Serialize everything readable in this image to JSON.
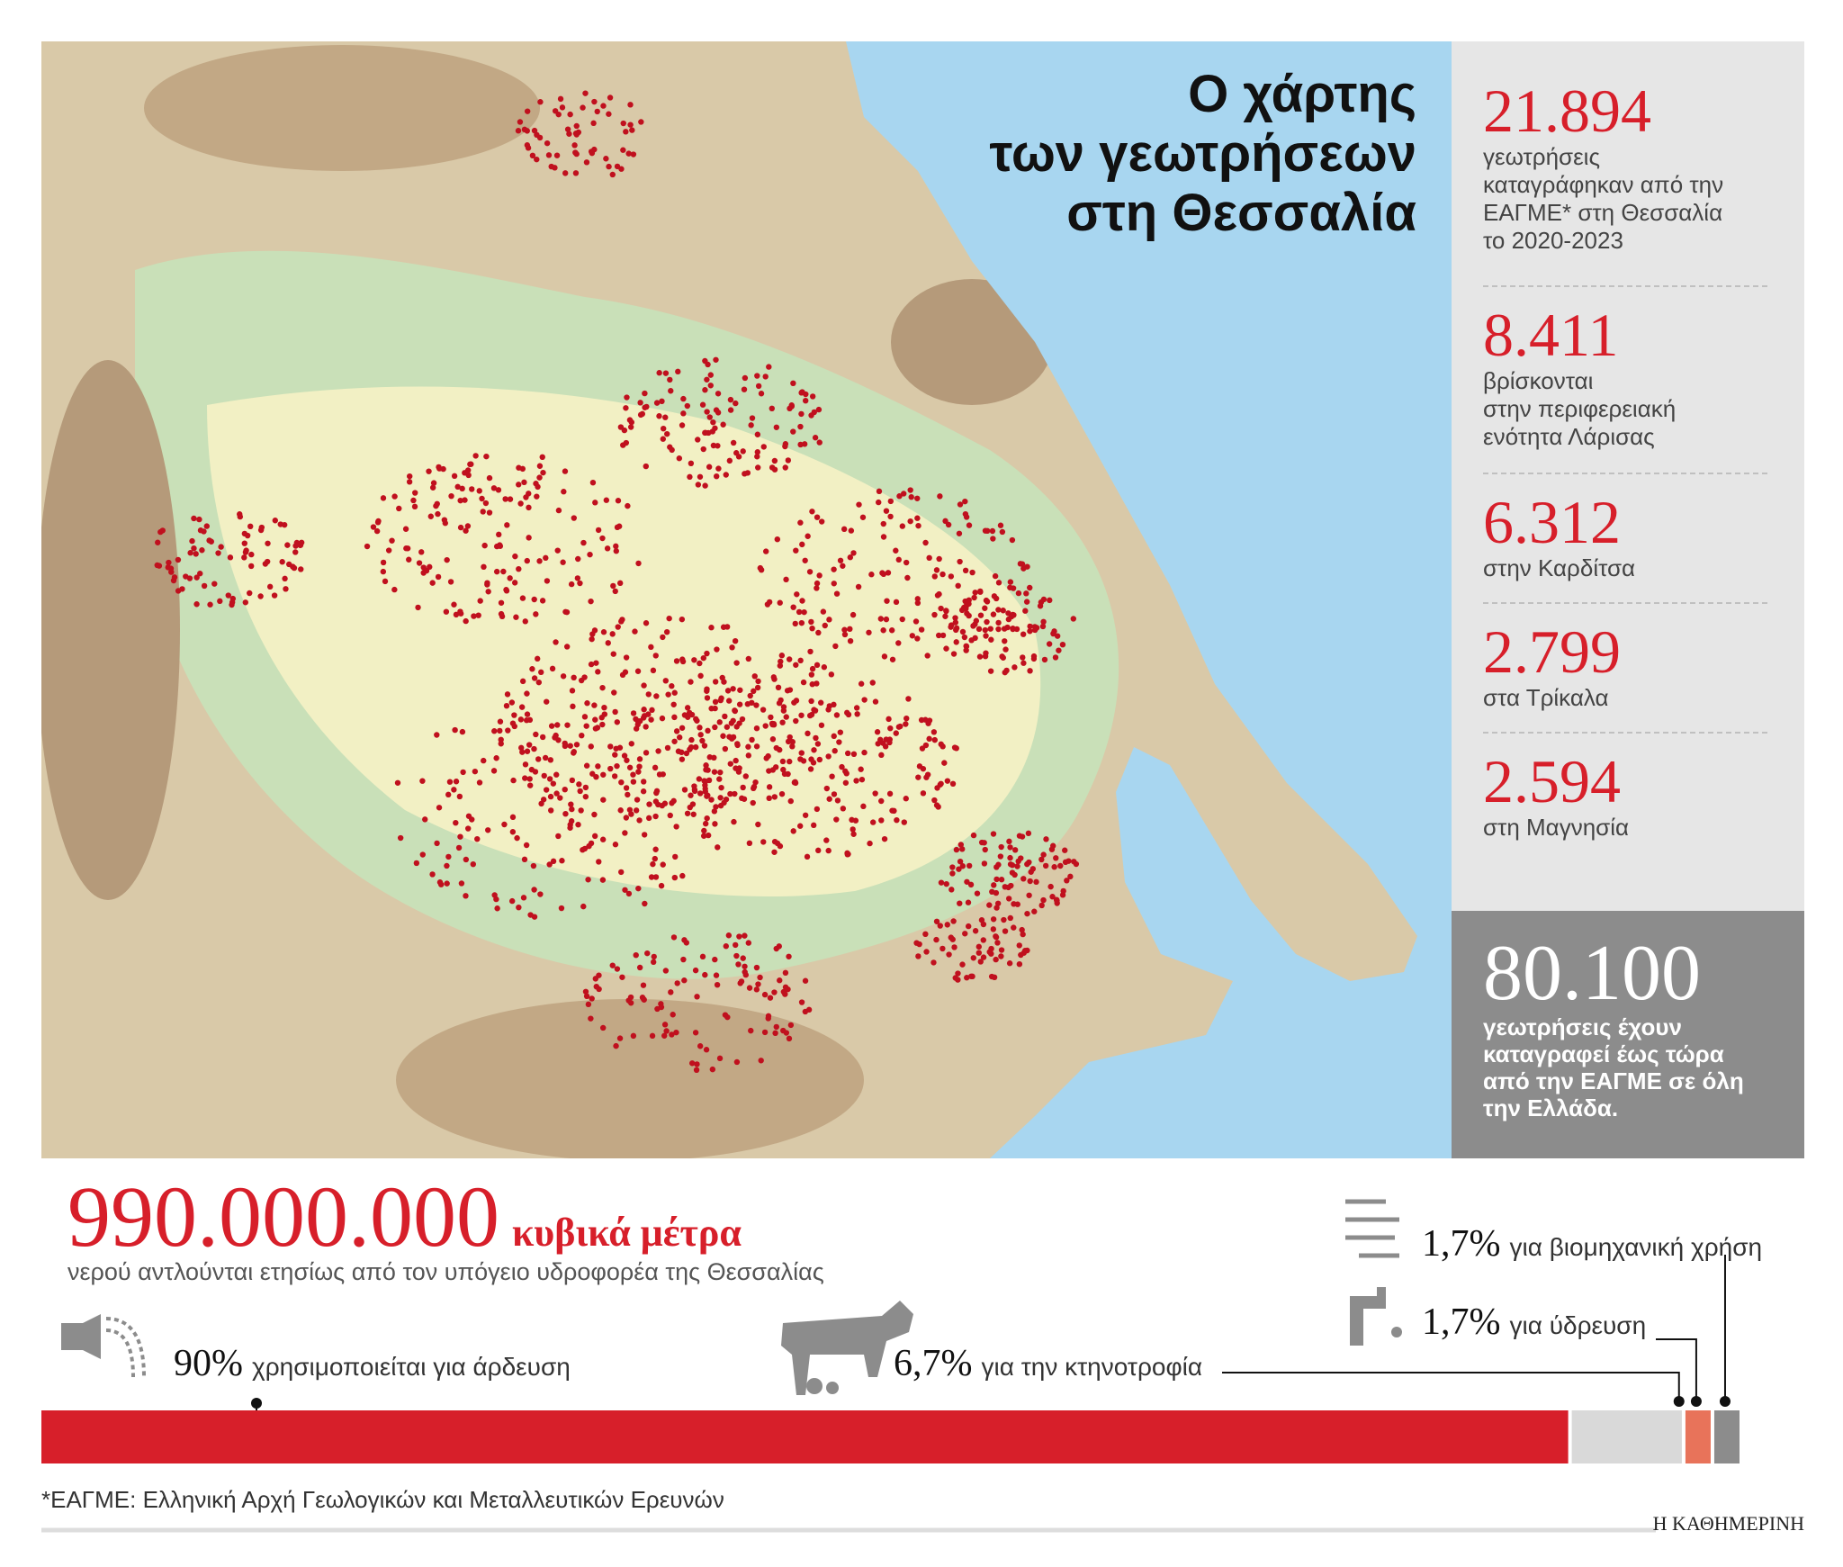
{
  "title_lines": [
    "Ο χάρτης",
    "των γεωτρήσεων",
    "στη Θεσσαλία"
  ],
  "stats": [
    {
      "value": "21.894",
      "label_lines": [
        "γεωτρήσεις",
        "καταγράφηκαν από την",
        "ΕΑΓΜΕ* στη Θεσσαλία",
        "το 2020-2023"
      ]
    },
    {
      "value": "8.411",
      "label_lines": [
        "βρίσκονται",
        "στην περιφερειακή",
        "ενότητα Λάρισας"
      ]
    },
    {
      "value": "6.312",
      "label_lines": [
        "στην Καρδίτσα"
      ]
    },
    {
      "value": "2.799",
      "label_lines": [
        "στα Τρίκαλα"
      ]
    },
    {
      "value": "2.594",
      "label_lines": [
        "στη Μαγνησία"
      ]
    }
  ],
  "total": {
    "value": "80.100",
    "label_lines": [
      "γεωτρήσεις έχουν",
      "καταγραφεί έως τώρα",
      "από την ΕΑΓΜΕ σε όλη",
      "την Ελλάδα."
    ]
  },
  "volume": {
    "value": "990.000.000",
    "unit": "κυβικά μέτρα",
    "description": "νερού αντλούνται ετησίως από τον υπόγειο υδροφορέα της Θεσσαλίας"
  },
  "usage": {
    "values": [
      90,
      6.7,
      1.7,
      1.7
    ],
    "value_labels": [
      "90%",
      "6,7%",
      "1,7%",
      "1,7%"
    ],
    "labels": [
      "χρησιμοποιείται για άρδευση",
      "για την κτηνοτροφία",
      "για ύδρευση",
      "για βιομηχανική χρήση"
    ],
    "colors": [
      "#d71f2a",
      "#d9d9d9",
      "#e8735a",
      "#8c8c8c"
    ]
  },
  "footnote": "*ΕΑΓΜΕ: Ελληνική Αρχή Γεωλογικών και Μεταλλευτικών Ερευνών",
  "credit": "Η ΚΑΘΗΜΕΡΙΝΗ"
}
